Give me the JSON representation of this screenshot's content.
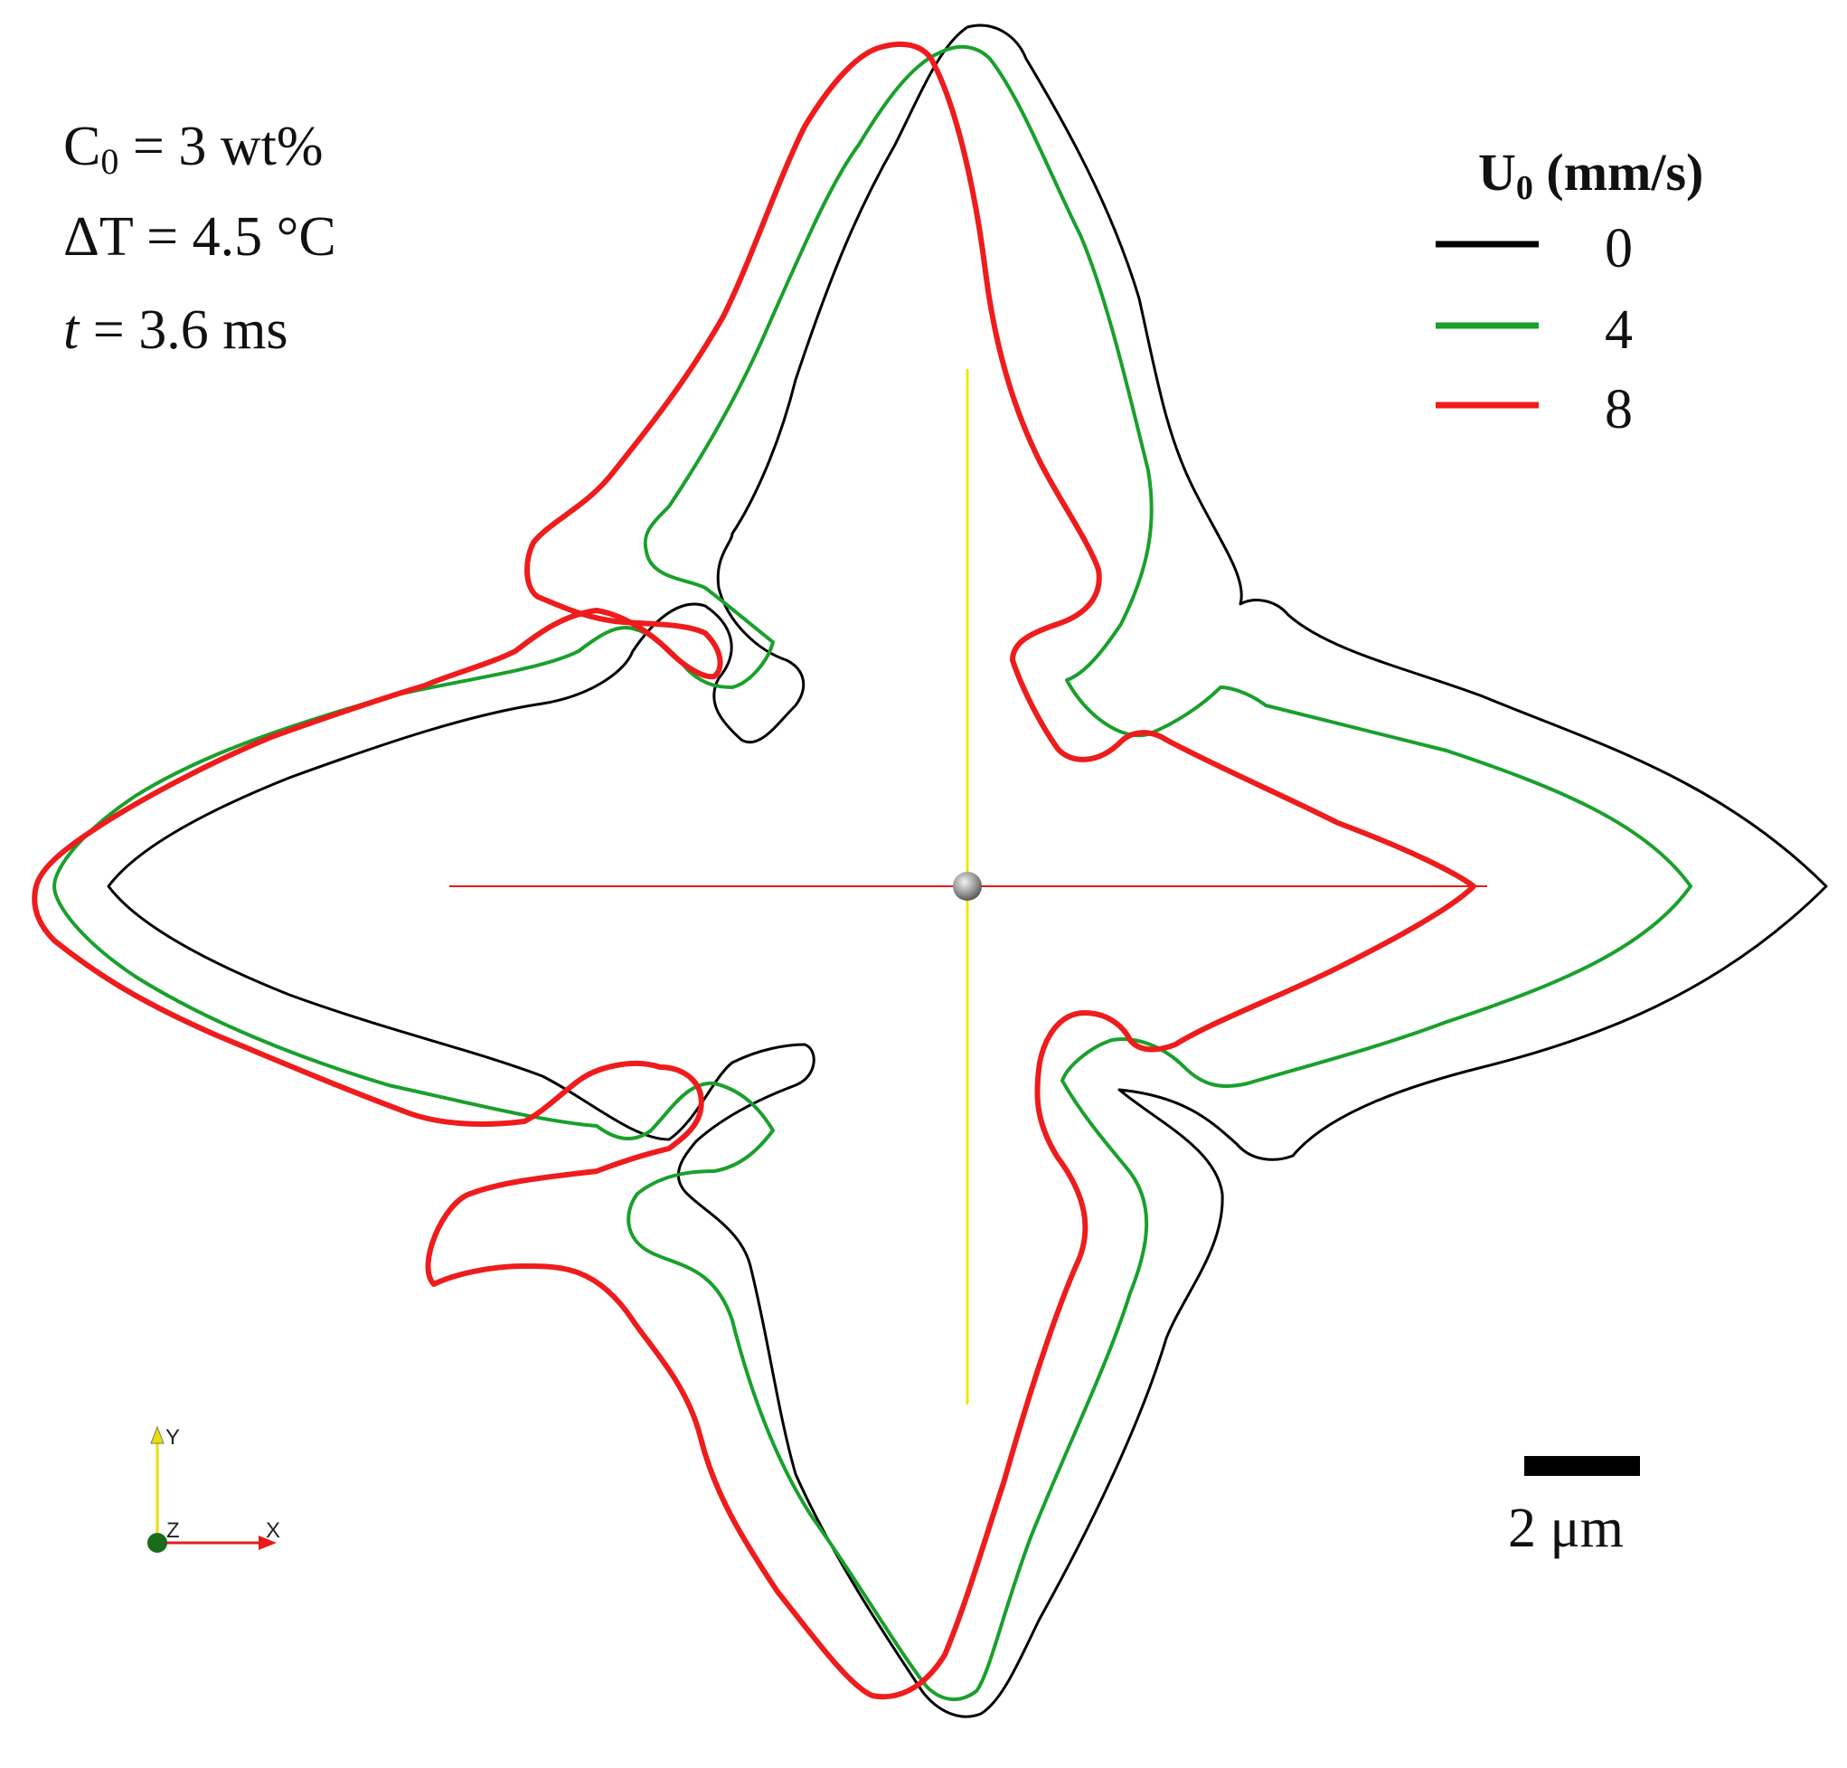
{
  "parameters": {
    "c0": {
      "symbol": "C",
      "sub": "0",
      "rest": " = 3 wt%"
    },
    "delta_t": {
      "text": "ΔT = 4.5 °C"
    },
    "time": {
      "symbol": "t",
      "rest": " = 3.6 ms"
    }
  },
  "legend": {
    "title_symbol": "U",
    "title_sub": "0",
    "title_rest": " (mm/s)",
    "entries": [
      {
        "label": "0",
        "color": "#000000"
      },
      {
        "label": "4",
        "color": "#19a02c"
      },
      {
        "label": "8",
        "color": "#ee1c1c"
      }
    ]
  },
  "scale_bar": {
    "label": "2 μm"
  },
  "axes_triad": {
    "y": "Y",
    "z": "Z",
    "x": "X"
  },
  "colors": {
    "vertical_axis": "#f2e600",
    "horizontal_axis": "#e61b1b",
    "origin_sphere": "#9a9a9a"
  }
}
